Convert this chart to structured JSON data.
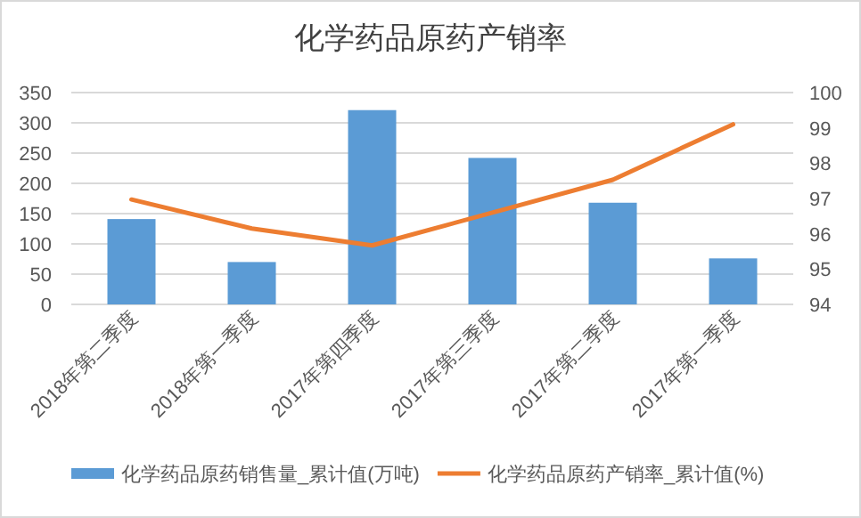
{
  "chart_data": {
    "type": "bar",
    "title": "化学药品原药产销率",
    "categories": [
      "2018年第二季度",
      "2018年第一季度",
      "2017年第四季度",
      "2017年第三季度",
      "2017年第二季度",
      "2017年第一季度"
    ],
    "series": [
      {
        "name": "化学药品原药销售量_累计值(万吨)",
        "color": "#5b9bd5",
        "values": [
          141,
          70,
          321,
          242,
          168,
          76
        ]
      },
      {
        "name": "化学药品原药产销率_累计值(%)",
        "type": "line",
        "axis": "y2",
        "color": "#ed7d31",
        "values": [
          96.97,
          96.15,
          95.67,
          96.6,
          97.53,
          99.1
        ]
      }
    ],
    "ylim": [
      0,
      350
    ],
    "yticks": [
      0,
      50,
      100,
      150,
      200,
      250,
      300,
      350
    ],
    "y2lim": [
      94,
      100
    ],
    "y2ticks": [
      94,
      95,
      96,
      97,
      98,
      99,
      100
    ],
    "grid": "y",
    "legend": "bottom"
  }
}
